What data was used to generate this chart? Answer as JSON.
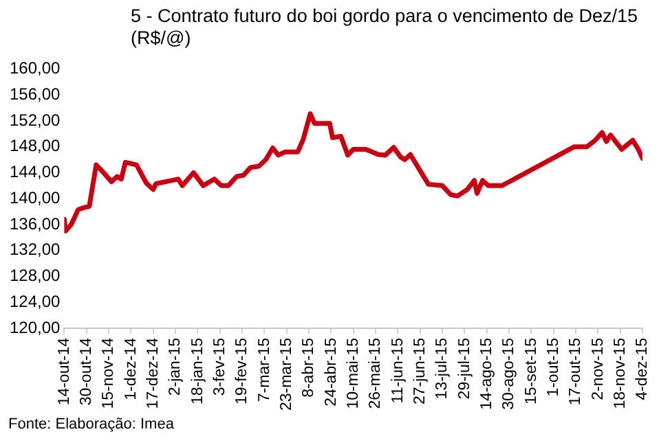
{
  "chart_data": {
    "type": "line",
    "title": "5 - Contrato futuro do boi gordo para o vencimento de Dez/15 (R$/@)",
    "annotations": [
      "Fonte: Elaboração: Imea"
    ],
    "series": [
      {
        "color": "#cc0011",
        "x": [
          "2014-10-14",
          "2014-10-15",
          "2014-10-19",
          "2014-10-24",
          "2014-10-28",
          "2014-11-01",
          "2014-11-06",
          "2014-11-10",
          "2014-11-17",
          "2014-11-21",
          "2014-11-24",
          "2014-11-27",
          "2014-12-05",
          "2014-12-12",
          "2014-12-17",
          "2014-12-19",
          "2015-01-04",
          "2015-01-07",
          "2015-01-15",
          "2015-01-22",
          "2015-01-30",
          "2015-02-04",
          "2015-02-09",
          "2015-02-15",
          "2015-02-20",
          "2015-02-25",
          "2015-03-03",
          "2015-03-08",
          "2015-03-13",
          "2015-03-17",
          "2015-03-22",
          "2015-03-31",
          "2015-04-04",
          "2015-04-09",
          "2015-04-12",
          "2015-04-23",
          "2015-04-25",
          "2015-05-01",
          "2015-05-06",
          "2015-05-10",
          "2015-05-19",
          "2015-05-28",
          "2015-06-02",
          "2015-06-08",
          "2015-06-13",
          "2015-06-16",
          "2015-06-20",
          "2015-06-27",
          "2015-07-03",
          "2015-07-13",
          "2015-07-19",
          "2015-07-24",
          "2015-07-31",
          "2015-08-05",
          "2015-08-07",
          "2015-08-11",
          "2015-08-15",
          "2015-08-25",
          "2015-10-16",
          "2015-10-25",
          "2015-10-31",
          "2015-11-05",
          "2015-11-08",
          "2015-11-11",
          "2015-11-19",
          "2015-11-27",
          "2015-12-01",
          "2015-12-04"
        ],
        "values": [
          136.8,
          135.0,
          136.0,
          138.3,
          138.6,
          138.8,
          145.2,
          144.3,
          142.6,
          143.4,
          143.0,
          145.6,
          145.2,
          142.4,
          141.4,
          142.3,
          143.0,
          142.0,
          144.0,
          142.0,
          143.0,
          142.0,
          142.0,
          143.4,
          143.6,
          144.8,
          145.0,
          146.0,
          147.8,
          146.7,
          147.2,
          147.2,
          149.2,
          153.1,
          151.6,
          151.6,
          149.4,
          149.6,
          146.7,
          147.6,
          147.6,
          146.8,
          146.7,
          147.9,
          146.4,
          146.0,
          146.8,
          144.3,
          142.2,
          142.0,
          140.6,
          140.4,
          141.4,
          142.8,
          140.8,
          142.8,
          142.0,
          142.0,
          148.0,
          148.0,
          149.0,
          150.2,
          148.8,
          149.8,
          147.6,
          149.0,
          147.6,
          146.2
        ]
      }
    ],
    "xlim": [
      "2014-10-14",
      "2015-12-04"
    ],
    "xticks": [
      {
        "value": "2014-10-14",
        "label": "14-out-14"
      },
      {
        "value": "2014-10-30",
        "label": "30-out-14"
      },
      {
        "value": "2014-11-15",
        "label": "15-nov-14"
      },
      {
        "value": "2014-12-01",
        "label": "1-dez-14"
      },
      {
        "value": "2014-12-17",
        "label": "17-dez-14"
      },
      {
        "value": "2015-01-02",
        "label": "2-jan-15"
      },
      {
        "value": "2015-01-18",
        "label": "18-jan-15"
      },
      {
        "value": "2015-02-03",
        "label": "3-fev-15"
      },
      {
        "value": "2015-02-19",
        "label": "19-fev-15"
      },
      {
        "value": "2015-03-07",
        "label": "7-mar-15"
      },
      {
        "value": "2015-03-23",
        "label": "23-mar-15"
      },
      {
        "value": "2015-04-08",
        "label": "8-abr-15"
      },
      {
        "value": "2015-04-24",
        "label": "24-abr-15"
      },
      {
        "value": "2015-05-10",
        "label": "10-mai-15"
      },
      {
        "value": "2015-05-26",
        "label": "26-mai-15"
      },
      {
        "value": "2015-06-11",
        "label": "11-jun-15"
      },
      {
        "value": "2015-06-27",
        "label": "27-jun-15"
      },
      {
        "value": "2015-07-13",
        "label": "13-jul-15"
      },
      {
        "value": "2015-07-29",
        "label": "29-jul-15"
      },
      {
        "value": "2015-08-14",
        "label": "14-ago-15"
      },
      {
        "value": "2015-08-30",
        "label": "30-ago-15"
      },
      {
        "value": "2015-09-15",
        "label": "15-set-15"
      },
      {
        "value": "2015-10-01",
        "label": "1-out-15"
      },
      {
        "value": "2015-10-17",
        "label": "17-out-15"
      },
      {
        "value": "2015-11-02",
        "label": "2-nov-15"
      },
      {
        "value": "2015-11-18",
        "label": "18-nov-15"
      },
      {
        "value": "2015-12-04",
        "label": "4-dez-15"
      }
    ],
    "ylim": [
      120,
      160
    ],
    "yticks": [
      {
        "value": 120,
        "label": "120,00"
      },
      {
        "value": 124,
        "label": "124,00"
      },
      {
        "value": 128,
        "label": "128,00"
      },
      {
        "value": 132,
        "label": "132,00"
      },
      {
        "value": 136,
        "label": "136,00"
      },
      {
        "value": 140,
        "label": "140,00"
      },
      {
        "value": 144,
        "label": "144,00"
      },
      {
        "value": 148,
        "label": "148,00"
      },
      {
        "value": 152,
        "label": "152,00"
      },
      {
        "value": 156,
        "label": "156,00"
      },
      {
        "value": 160,
        "label": "160,00"
      }
    ],
    "grid": false,
    "legend": false,
    "marker": "none",
    "line_style": "solid"
  }
}
